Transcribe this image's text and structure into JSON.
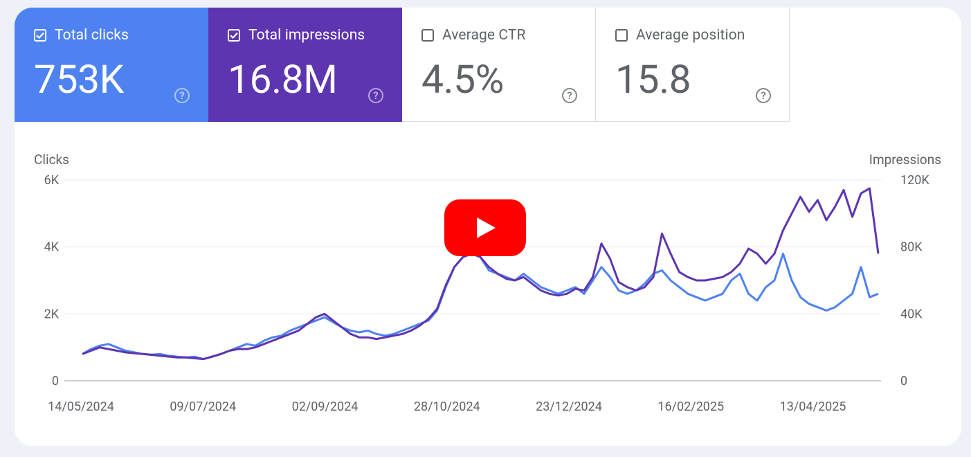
{
  "metrics": [
    {
      "label": "Total clicks",
      "value": "753K",
      "checked": true
    },
    {
      "label": "Total impressions",
      "value": "16.8M",
      "checked": true
    },
    {
      "label": "Average CTR",
      "value": "4.5%",
      "checked": false
    },
    {
      "label": "Average position",
      "value": "15.8",
      "checked": false
    }
  ],
  "help_glyph": "?",
  "colors": {
    "clicks": "#4e82f0",
    "impressions": "#5e35b1",
    "play": "#ff0000"
  },
  "chart_data": {
    "type": "line",
    "left_axis_title": "Clicks",
    "right_axis_title": "Impressions",
    "left_ticks": [
      "0",
      "2K",
      "4K",
      "6K"
    ],
    "right_ticks": [
      "0",
      "40K",
      "80K",
      "120K"
    ],
    "ylim_left": [
      0,
      6000
    ],
    "ylim_right": [
      0,
      120000
    ],
    "x_ticks": [
      "14/05/2024",
      "09/07/2024",
      "02/09/2024",
      "28/10/2024",
      "23/12/2024",
      "16/02/2025",
      "13/04/2025"
    ],
    "x_start": "14/05/2024",
    "x_end": "22/05/2025",
    "series": [
      {
        "name": "Clicks",
        "axis": "left",
        "color": "#4e82f0",
        "values": [
          800,
          950,
          1050,
          1100,
          1000,
          900,
          850,
          800,
          780,
          800,
          750,
          720,
          700,
          720,
          650,
          720,
          800,
          900,
          1000,
          1100,
          1050,
          1200,
          1300,
          1350,
          1500,
          1600,
          1700,
          1800,
          1900,
          1750,
          1600,
          1500,
          1450,
          1500,
          1400,
          1350,
          1400,
          1500,
          1600,
          1700,
          1800,
          2100,
          2800,
          3400,
          3700,
          3800,
          3700,
          3300,
          3200,
          3100,
          3000,
          3200,
          3000,
          2800,
          2700,
          2600,
          2700,
          2800,
          2600,
          3000,
          3400,
          3100,
          2700,
          2600,
          2700,
          2900,
          3200,
          3300,
          3000,
          2800,
          2600,
          2500,
          2400,
          2500,
          2600,
          3000,
          3200,
          2600,
          2400,
          2800,
          3000,
          3800,
          3000,
          2500,
          2300,
          2200,
          2100,
          2200,
          2400,
          2600,
          3400,
          2500,
          2600
        ]
      },
      {
        "name": "Impressions",
        "axis": "right",
        "color": "#5e35b1",
        "values": [
          16000,
          18000,
          20000,
          19000,
          18000,
          17000,
          16500,
          16000,
          15500,
          15000,
          14500,
          14000,
          14000,
          13500,
          13000,
          14500,
          16000,
          18000,
          19000,
          19000,
          20000,
          22000,
          24000,
          26000,
          28000,
          30000,
          34000,
          38000,
          40000,
          36000,
          32000,
          28000,
          26000,
          26000,
          25000,
          26000,
          27000,
          28000,
          30000,
          33000,
          37000,
          43000,
          57000,
          68000,
          74000,
          76000,
          74000,
          68000,
          64000,
          61000,
          60000,
          62000,
          58000,
          54000,
          52000,
          51000,
          52000,
          55000,
          54000,
          62000,
          82000,
          73000,
          59000,
          56000,
          54000,
          56000,
          62000,
          88000,
          76000,
          65000,
          62000,
          60000,
          60000,
          61000,
          62000,
          65000,
          70000,
          79000,
          76000,
          70000,
          76000,
          90000,
          100000,
          110000,
          101000,
          108000,
          96000,
          104000,
          114000,
          98000,
          112000,
          115000,
          76000
        ]
      }
    ]
  }
}
